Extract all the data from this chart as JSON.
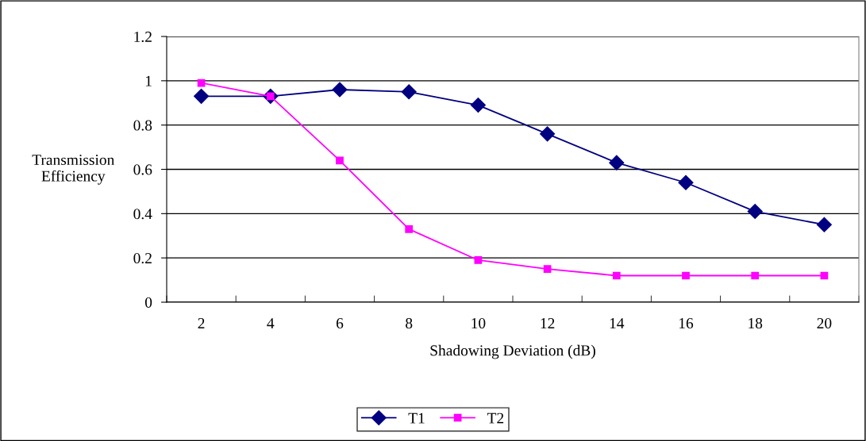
{
  "chart_data": {
    "type": "line",
    "xlabel": "Shadowing Deviation (dB)",
    "ylabel": "Transmission\nEfficiency",
    "categories": [
      "2",
      "4",
      "6",
      "8",
      "10",
      "12",
      "14",
      "16",
      "18",
      "20"
    ],
    "series": [
      {
        "name": "T1",
        "color": "#000080",
        "marker": "diamond",
        "values": [
          0.93,
          0.93,
          0.96,
          0.95,
          0.89,
          0.76,
          0.63,
          0.54,
          0.41,
          0.35
        ]
      },
      {
        "name": "T2",
        "color": "#ff00ff",
        "marker": "square",
        "values": [
          0.99,
          0.93,
          0.64,
          0.33,
          0.19,
          0.15,
          0.12,
          0.12,
          0.12,
          0.12
        ]
      }
    ],
    "ylim": [
      0,
      1.2
    ],
    "yticks": [
      0,
      0.2,
      0.4,
      0.6,
      0.8,
      1,
      1.2
    ],
    "grid": "y",
    "legend": "bottom"
  }
}
